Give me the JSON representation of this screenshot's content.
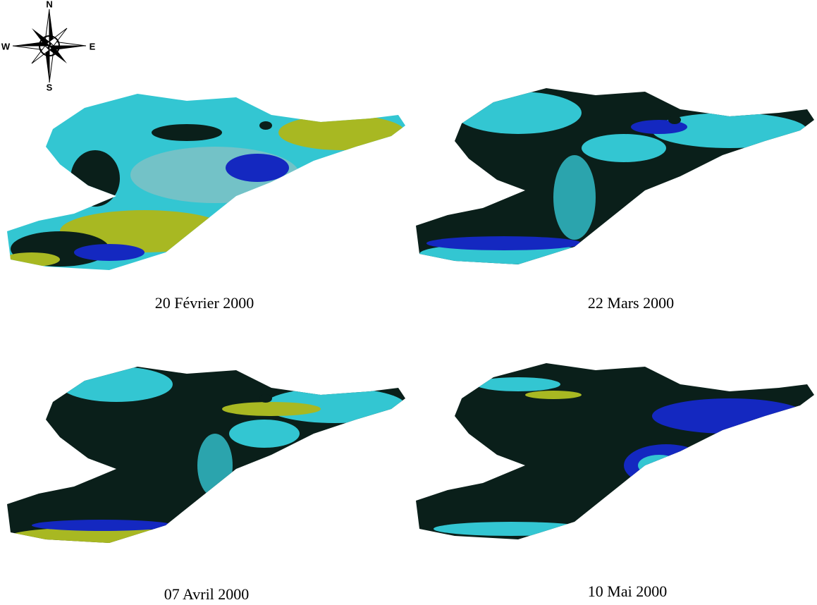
{
  "compass": {
    "north": "N",
    "south": "S",
    "west": "W",
    "east": "E"
  },
  "panels": [
    {
      "caption": "20 Février 2000"
    },
    {
      "caption": "22 Mars 2000"
    },
    {
      "caption": "07 Avril 2000"
    },
    {
      "caption": "10 Mai 2000"
    }
  ]
}
